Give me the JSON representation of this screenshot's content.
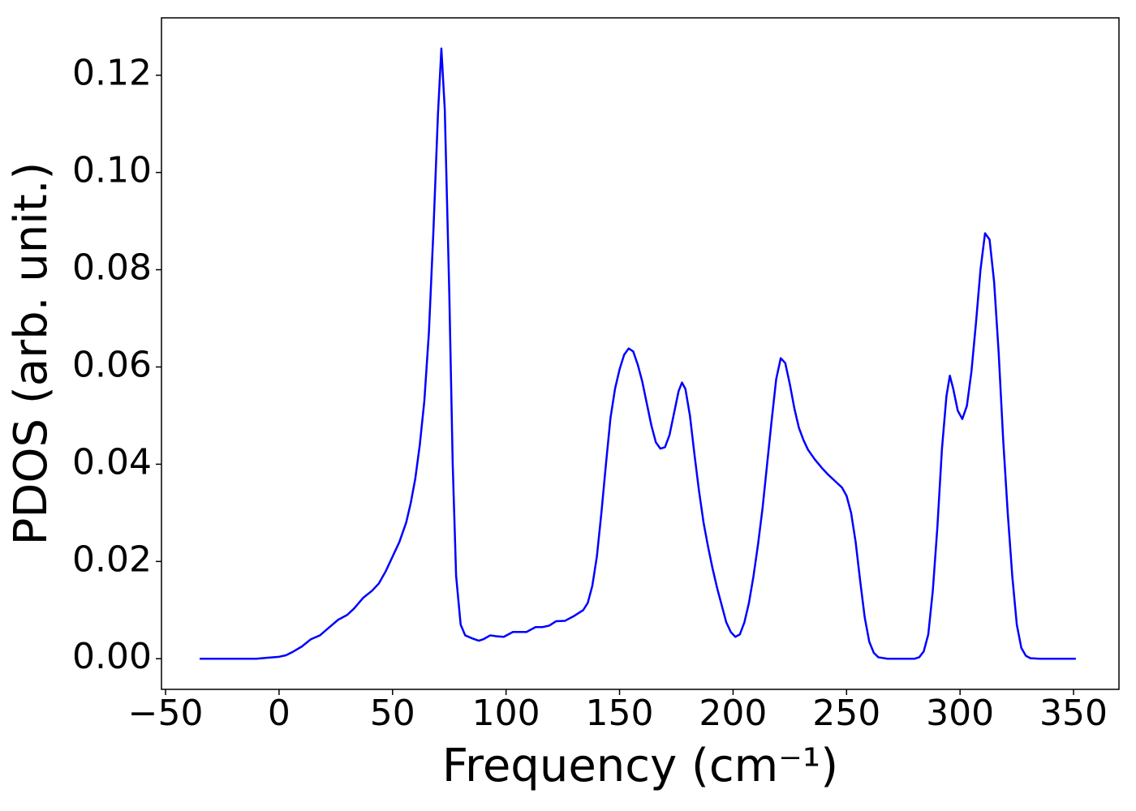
{
  "chart_data": {
    "type": "line",
    "xlabel": "Frequency (cm⁻¹)",
    "ylabel": "PDOS (arb. unit.)",
    "color": "#0000ff",
    "x": [
      -35,
      -10,
      -5,
      0,
      3,
      6,
      10,
      14,
      18,
      22,
      26,
      30,
      33,
      37,
      41,
      44,
      47,
      50,
      53,
      56,
      58,
      60,
      62,
      64,
      66,
      68,
      70,
      71.5,
      73,
      75,
      76.5,
      78,
      80,
      82,
      85,
      88,
      90,
      93,
      96,
      99,
      103,
      106,
      109,
      113,
      116,
      119,
      122,
      126,
      130,
      134,
      136,
      138,
      140,
      142,
      144,
      146,
      148,
      150,
      152,
      154,
      156,
      158,
      160,
      162,
      164,
      166,
      168,
      170,
      172,
      174,
      176,
      177.5,
      179,
      181,
      183,
      185,
      187,
      189,
      191,
      193,
      195,
      197,
      199,
      201,
      203,
      205,
      207,
      209,
      211,
      213,
      215,
      217,
      219,
      221,
      223,
      225,
      227,
      229,
      231,
      233,
      236,
      239,
      242,
      245,
      248,
      250,
      252,
      254,
      256,
      258,
      260,
      262,
      264,
      268,
      280,
      282,
      284,
      286,
      288,
      290,
      292,
      294,
      295.5,
      297,
      299,
      301,
      303,
      305,
      307,
      309,
      311,
      313,
      315,
      317,
      319,
      321,
      323,
      325,
      327,
      329,
      331,
      335,
      351
    ],
    "values": [
      0,
      0,
      0.0002,
      0.0004,
      0.0007,
      0.0014,
      0.0025,
      0.004,
      0.0048,
      0.0064,
      0.008,
      0.009,
      0.0103,
      0.0125,
      0.014,
      0.0155,
      0.018,
      0.021,
      0.024,
      0.028,
      0.032,
      0.037,
      0.044,
      0.053,
      0.067,
      0.088,
      0.112,
      0.1255,
      0.113,
      0.075,
      0.04,
      0.017,
      0.007,
      0.0048,
      0.0042,
      0.0037,
      0.004,
      0.0048,
      0.0046,
      0.0045,
      0.0055,
      0.0055,
      0.0055,
      0.0065,
      0.0065,
      0.0068,
      0.0077,
      0.0078,
      0.0088,
      0.01,
      0.0115,
      0.015,
      0.021,
      0.03,
      0.04,
      0.0495,
      0.0555,
      0.0595,
      0.0625,
      0.0638,
      0.0632,
      0.0605,
      0.057,
      0.0525,
      0.048,
      0.0445,
      0.0432,
      0.0435,
      0.046,
      0.0505,
      0.055,
      0.0568,
      0.0555,
      0.05,
      0.042,
      0.0345,
      0.028,
      0.023,
      0.0185,
      0.0145,
      0.011,
      0.0075,
      0.0055,
      0.0045,
      0.005,
      0.0075,
      0.0115,
      0.017,
      0.0235,
      0.031,
      0.04,
      0.049,
      0.0575,
      0.0618,
      0.0608,
      0.0565,
      0.0515,
      0.0475,
      0.045,
      0.043,
      0.041,
      0.0393,
      0.0378,
      0.0365,
      0.0352,
      0.0335,
      0.03,
      0.024,
      0.016,
      0.0085,
      0.0035,
      0.0012,
      0.0003,
      0,
      0,
      0.0003,
      0.0015,
      0.005,
      0.014,
      0.027,
      0.043,
      0.054,
      0.0582,
      0.0555,
      0.051,
      0.0493,
      0.052,
      0.059,
      0.069,
      0.08,
      0.0875,
      0.0862,
      0.0775,
      0.063,
      0.045,
      0.03,
      0.017,
      0.007,
      0.0022,
      0.0006,
      0.0001,
      0,
      0
    ],
    "xlim": [
      -51.8,
      370
    ],
    "ylim": [
      -0.0063,
      0.1318
    ],
    "xticks": [
      {
        "value": -50,
        "label": "−50"
      },
      0,
      50,
      100,
      150,
      200,
      250,
      300,
      350
    ],
    "yticks": [
      {
        "value": 0,
        "label": "0.00"
      },
      {
        "value": 0.02,
        "label": "0.02"
      },
      {
        "value": 0.04,
        "label": "0.04"
      },
      {
        "value": 0.06,
        "label": "0.06"
      },
      {
        "value": 0.08,
        "label": "0.08"
      },
      {
        "value": 0.1,
        "label": "0.10"
      },
      {
        "value": 0.12,
        "label": "0.12"
      }
    ]
  }
}
